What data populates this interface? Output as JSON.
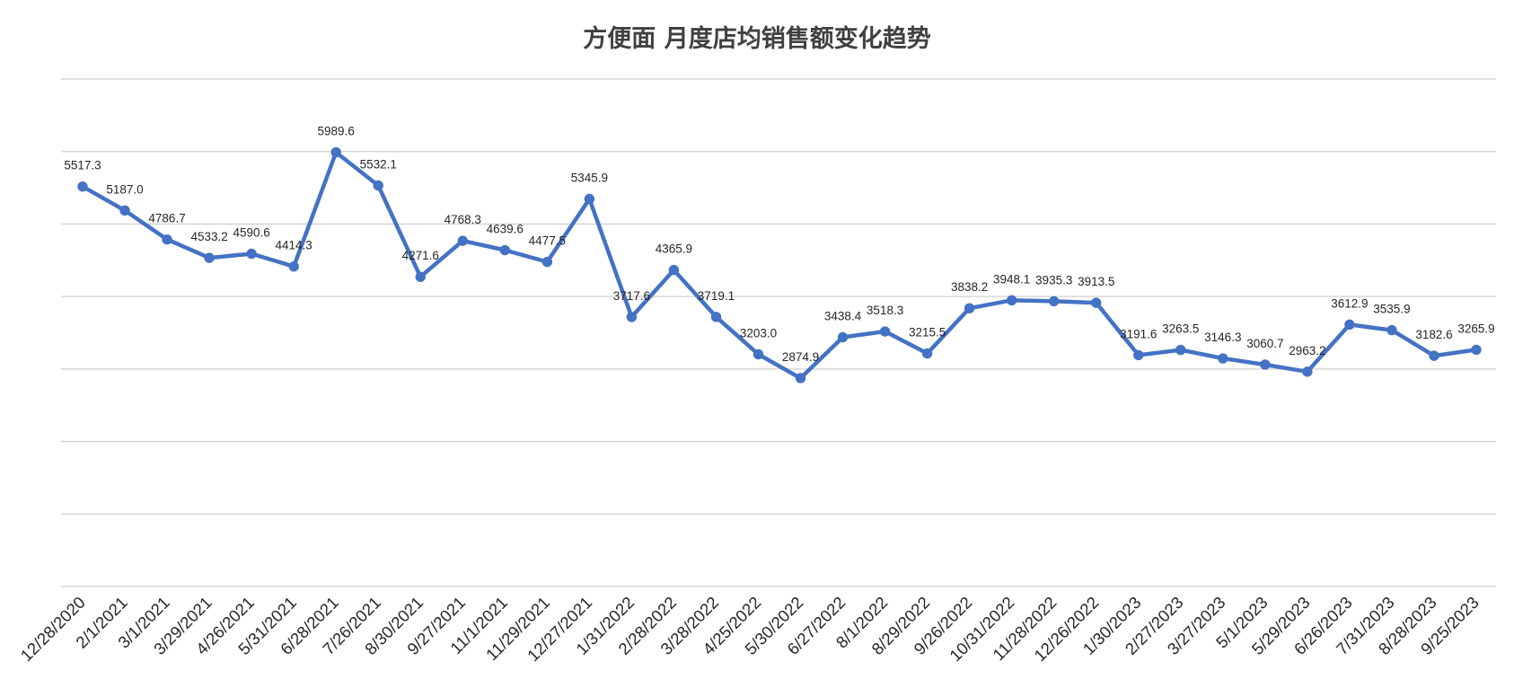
{
  "chart_data": {
    "type": "line",
    "title": "方便面 月度店均销售额变化趋势",
    "xlabel": "",
    "ylabel": "",
    "ylim": [
      0,
      7000
    ],
    "y_gridline_step": 1000,
    "y_tick_labels_visible": false,
    "grid": true,
    "legend": "none",
    "line_color": "#4472c4",
    "categories": [
      "12/28/2020",
      "2/1/2021",
      "3/1/2021",
      "3/29/2021",
      "4/26/2021",
      "5/31/2021",
      "6/28/2021",
      "7/26/2021",
      "8/30/2021",
      "9/27/2021",
      "11/1/2021",
      "11/29/2021",
      "12/27/2021",
      "1/31/2022",
      "2/28/2022",
      "3/28/2022",
      "4/25/2022",
      "5/30/2022",
      "6/27/2022",
      "8/1/2022",
      "8/29/2022",
      "9/26/2022",
      "10/31/2022",
      "11/28/2022",
      "12/26/2022",
      "1/30/2023",
      "2/27/2023",
      "3/27/2023",
      "5/1/2023",
      "5/29/2023",
      "6/26/2023",
      "7/31/2023",
      "8/28/2023",
      "9/25/2023"
    ],
    "series": [
      {
        "values": [
          5517.3,
          5187.0,
          4786.7,
          4533.2,
          4590.6,
          4414.3,
          5989.6,
          5532.1,
          4271.6,
          4768.3,
          4639.6,
          4477.5,
          5345.9,
          3717.6,
          4365.9,
          3719.1,
          3203.0,
          2874.9,
          3438.4,
          3518.3,
          3215.5,
          3838.2,
          3948.1,
          3935.3,
          3913.5,
          3191.6,
          3263.5,
          3146.3,
          3060.7,
          2963.2,
          3612.9,
          3535.9,
          3182.6,
          3265.9
        ]
      }
    ]
  }
}
